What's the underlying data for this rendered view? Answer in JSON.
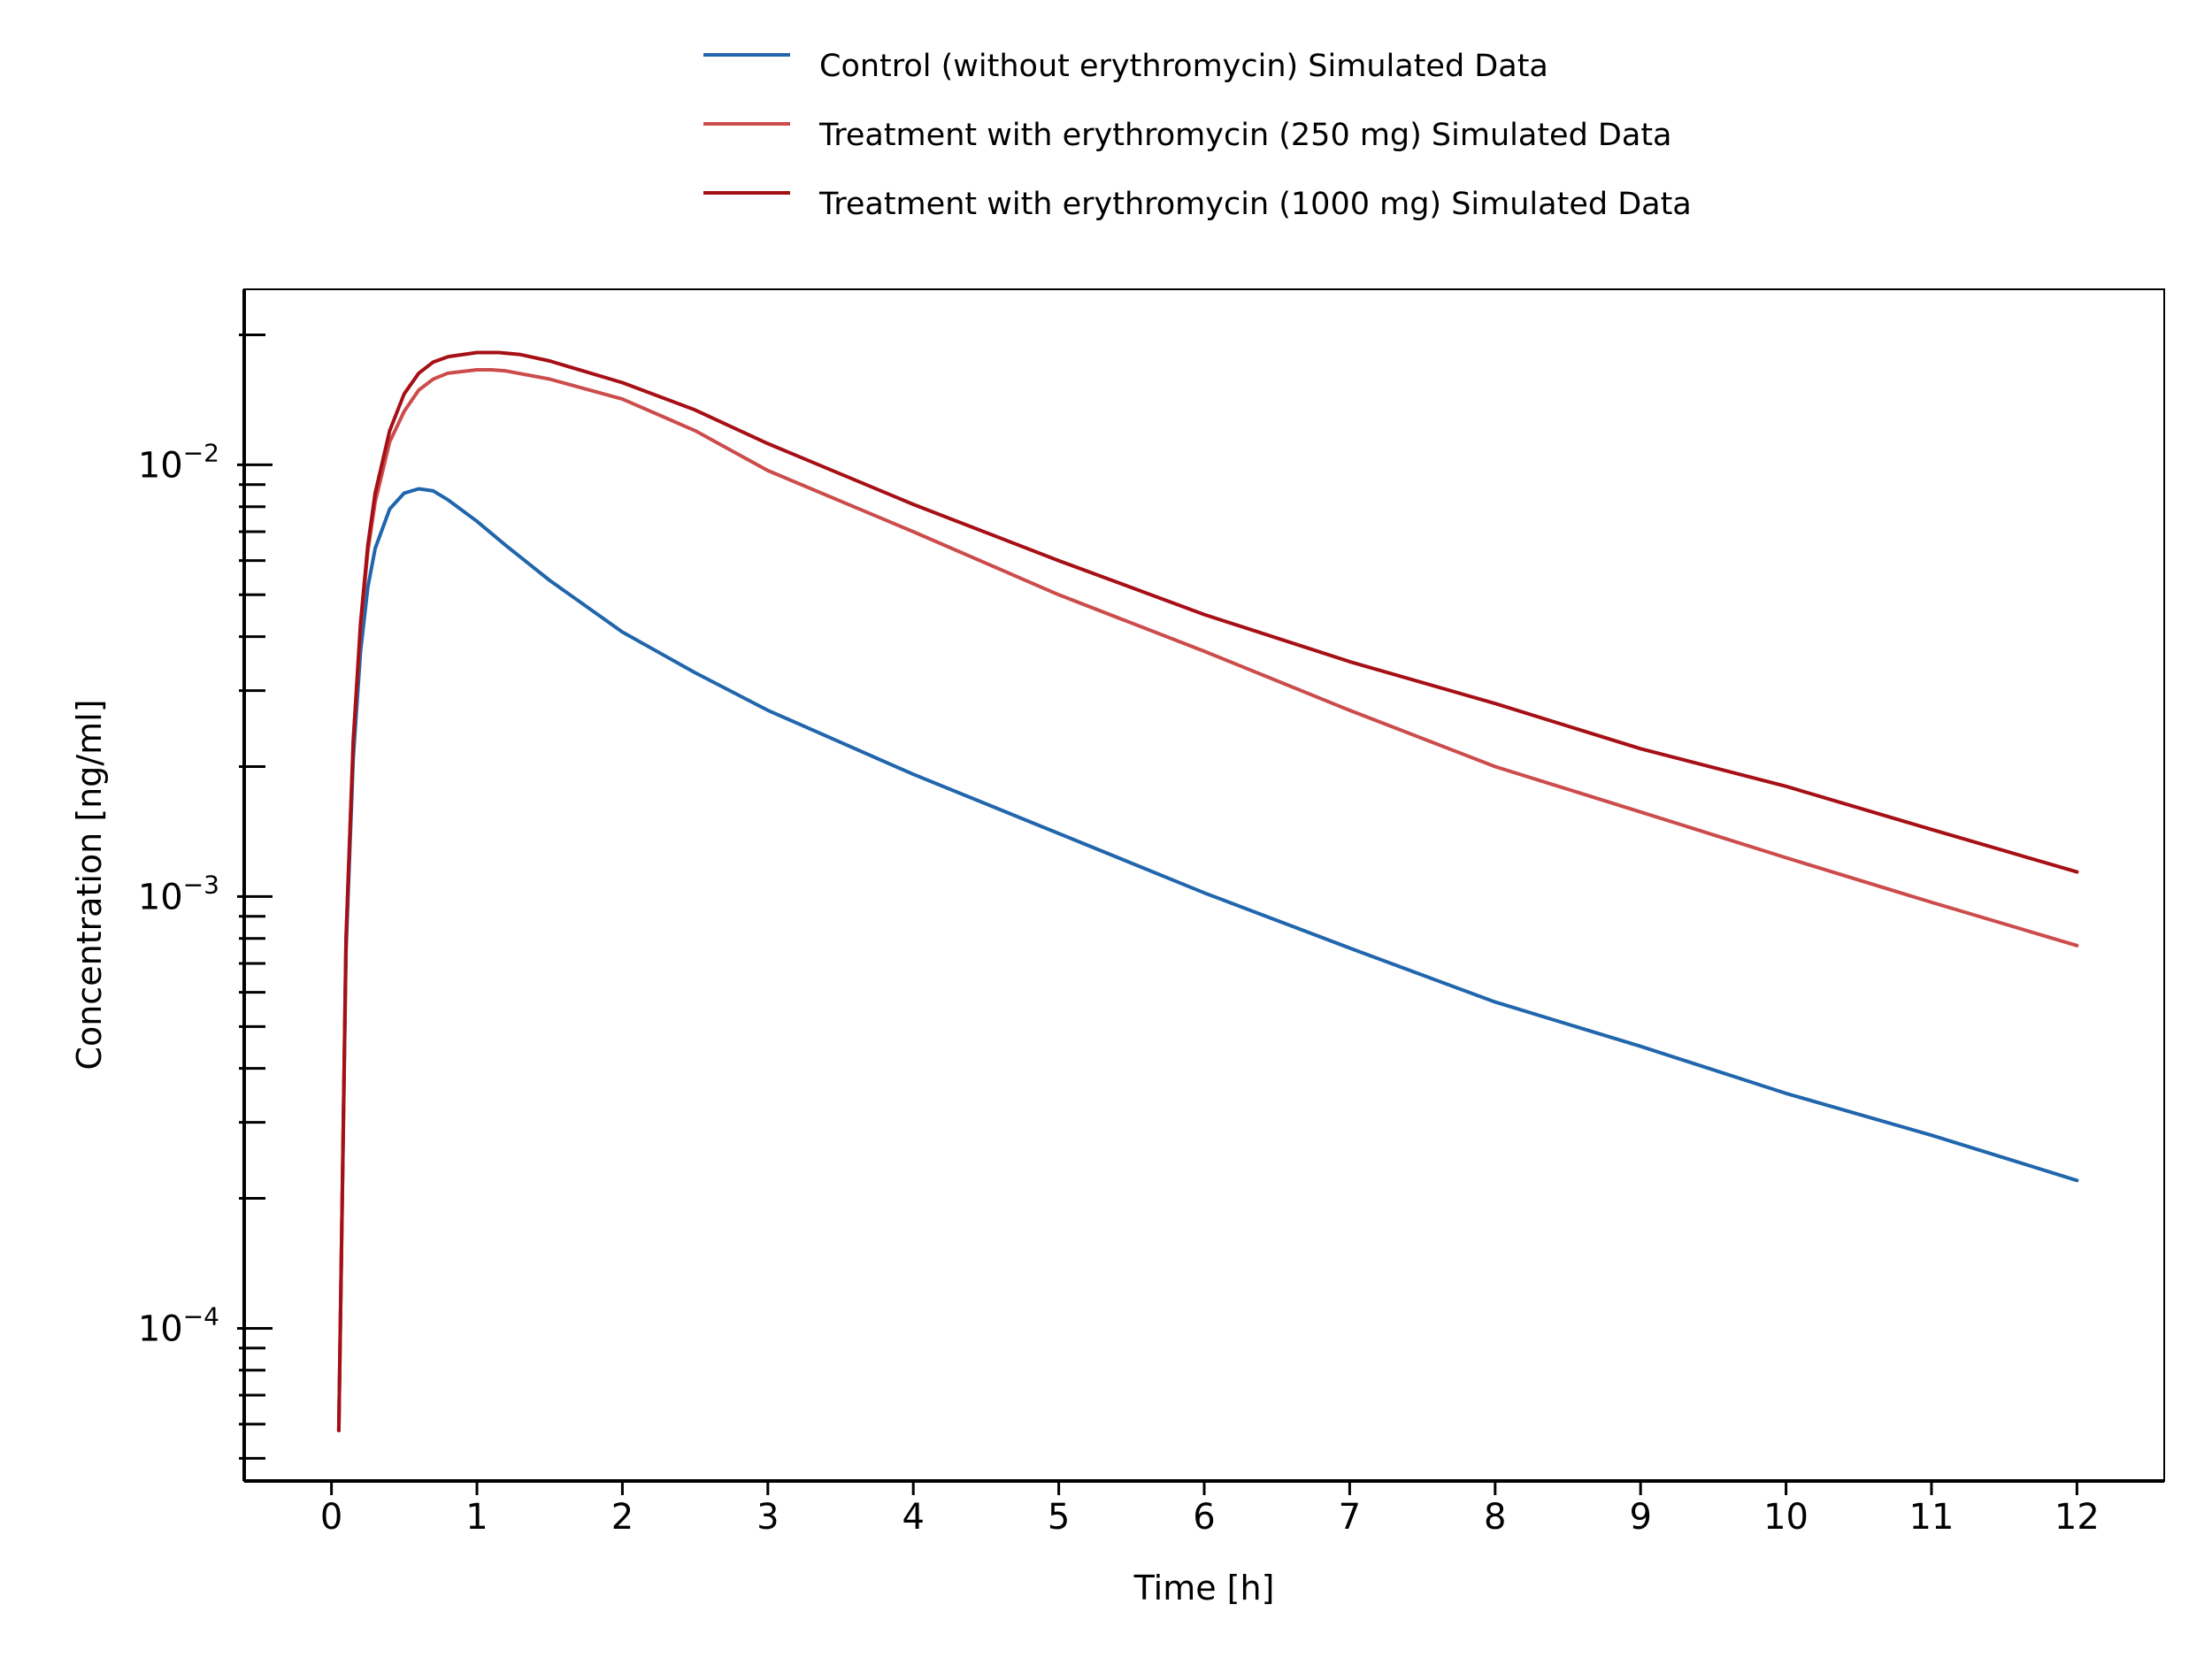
{
  "chart_data": {
    "type": "line",
    "xlabel": "Time [h]",
    "ylabel": "Concentration [ng/ml]",
    "xlim": [
      -0.6,
      12.6
    ],
    "ylim": [
      4.43e-05,
      0.0255
    ],
    "yscale": "log",
    "grid": false,
    "legend_position": "top-center",
    "x_ticks": [
      {
        "value": 0,
        "label": "0"
      },
      {
        "value": 1,
        "label": "1"
      },
      {
        "value": 2,
        "label": "2"
      },
      {
        "value": 3,
        "label": "3"
      },
      {
        "value": 4,
        "label": "4"
      },
      {
        "value": 5,
        "label": "5"
      },
      {
        "value": 6,
        "label": "6"
      },
      {
        "value": 7,
        "label": "7"
      },
      {
        "value": 8,
        "label": "8"
      },
      {
        "value": 9,
        "label": "9"
      },
      {
        "value": 10,
        "label": "10"
      },
      {
        "value": 11,
        "label": "11"
      },
      {
        "value": 12,
        "label": "12"
      }
    ],
    "y_major_ticks": [
      {
        "value": 0.0001,
        "base": "10",
        "exp": "−4"
      },
      {
        "value": 0.001,
        "base": "10",
        "exp": "−3"
      },
      {
        "value": 0.01,
        "base": "10",
        "exp": "−2"
      }
    ],
    "series": [
      {
        "name": "Control (without erythromycin) Simulated Data",
        "color": "#2166ac",
        "x": [
          0.05,
          0.1,
          0.15,
          0.2,
          0.25,
          0.3,
          0.4,
          0.5,
          0.6,
          0.7,
          0.8,
          1.0,
          1.2,
          1.5,
          2.0,
          2.5,
          3.0,
          4.0,
          5.0,
          6.0,
          7.0,
          8.0,
          9.0,
          10.0,
          11.0,
          12.0
        ],
        "y": [
          5.8e-05,
          0.00075,
          0.0021,
          0.0037,
          0.0052,
          0.0064,
          0.0079,
          0.0086,
          0.0088,
          0.0087,
          0.0083,
          0.0074,
          0.0065,
          0.0054,
          0.0041,
          0.0033,
          0.0027,
          0.00192,
          0.0014,
          0.00102,
          0.00076,
          0.00057,
          0.00045,
          0.00035,
          0.00028,
          0.00022
        ]
      },
      {
        "name": "Treatment with erythromycin (250 mg) Simulated Data",
        "color": "#cc4c4c",
        "x": [
          0.05,
          0.1,
          0.15,
          0.2,
          0.25,
          0.3,
          0.4,
          0.5,
          0.6,
          0.7,
          0.8,
          1.0,
          1.1,
          1.2,
          1.5,
          2.0,
          2.5,
          3.0,
          4.0,
          5.0,
          6.0,
          7.0,
          8.0,
          9.0,
          10.0,
          11.0,
          12.0
        ],
        "y": [
          5.8e-05,
          0.0008,
          0.0023,
          0.0042,
          0.0063,
          0.0082,
          0.0113,
          0.0133,
          0.0149,
          0.0158,
          0.0163,
          0.0166,
          0.0166,
          0.0165,
          0.0158,
          0.0142,
          0.012,
          0.0097,
          0.007,
          0.005,
          0.0037,
          0.0027,
          0.002,
          0.00157,
          0.00123,
          0.00097,
          0.00077
        ]
      },
      {
        "name": "Treatment with erythromycin (1000 mg) Simulated Data",
        "color": "#a50f15",
        "x": [
          0.05,
          0.1,
          0.15,
          0.2,
          0.25,
          0.3,
          0.4,
          0.5,
          0.6,
          0.7,
          0.8,
          1.0,
          1.15,
          1.3,
          1.5,
          2.0,
          2.5,
          3.0,
          4.0,
          5.0,
          6.0,
          7.0,
          8.0,
          9.0,
          10.0,
          11.0,
          12.0
        ],
        "y": [
          5.8e-05,
          0.0008,
          0.0023,
          0.0043,
          0.0065,
          0.0086,
          0.012,
          0.0146,
          0.0163,
          0.0173,
          0.0178,
          0.0182,
          0.0182,
          0.018,
          0.0174,
          0.0155,
          0.0134,
          0.0112,
          0.0081,
          0.006,
          0.0045,
          0.0035,
          0.0028,
          0.0022,
          0.0018,
          0.00143,
          0.00114
        ]
      }
    ]
  }
}
